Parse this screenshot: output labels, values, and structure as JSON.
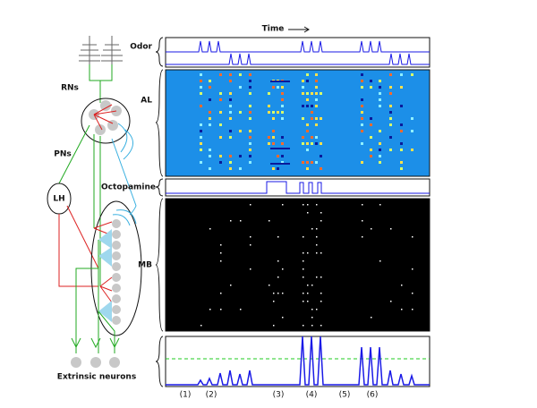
{
  "labels": {
    "time": "Time",
    "odor": "Odor",
    "rns": "RNs",
    "al": "AL",
    "pns": "PNs",
    "lh": "LH",
    "octopamine": "Octopamine",
    "mb": "MB",
    "extrinsic_neurons": "Extrinsic neurons"
  },
  "episodes": [
    "(1)",
    "(2)",
    "(3)",
    "(4)",
    "(5)",
    "(6)"
  ]
}
